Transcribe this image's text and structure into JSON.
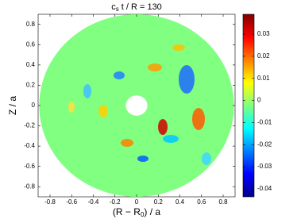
{
  "chart_data": {
    "type": "annulus-field",
    "title": [
      "c",
      "s",
      " t / R = 130"
    ],
    "x_label": [
      "(R − R",
      "0",
      ") / a"
    ],
    "y_label": "Z / a",
    "xlim": [
      -0.91,
      0.91
    ],
    "ylim": [
      -0.9,
      0.9
    ],
    "xticks": [
      -0.8,
      -0.6,
      -0.4,
      -0.2,
      0,
      0.2,
      0.4,
      0.6,
      0.8
    ],
    "yticks": [
      -0.8,
      -0.6,
      -0.4,
      -0.2,
      0,
      0.2,
      0.4,
      0.6,
      0.8
    ],
    "outer_radius": 0.9,
    "inner_radius": 0.1,
    "colormap": "jet",
    "clim": [
      -0.0436,
      0.039
    ],
    "cticks": [
      -0.04,
      -0.03,
      -0.02,
      -0.01,
      0,
      0.01,
      0.02,
      0.03
    ]
  }
}
